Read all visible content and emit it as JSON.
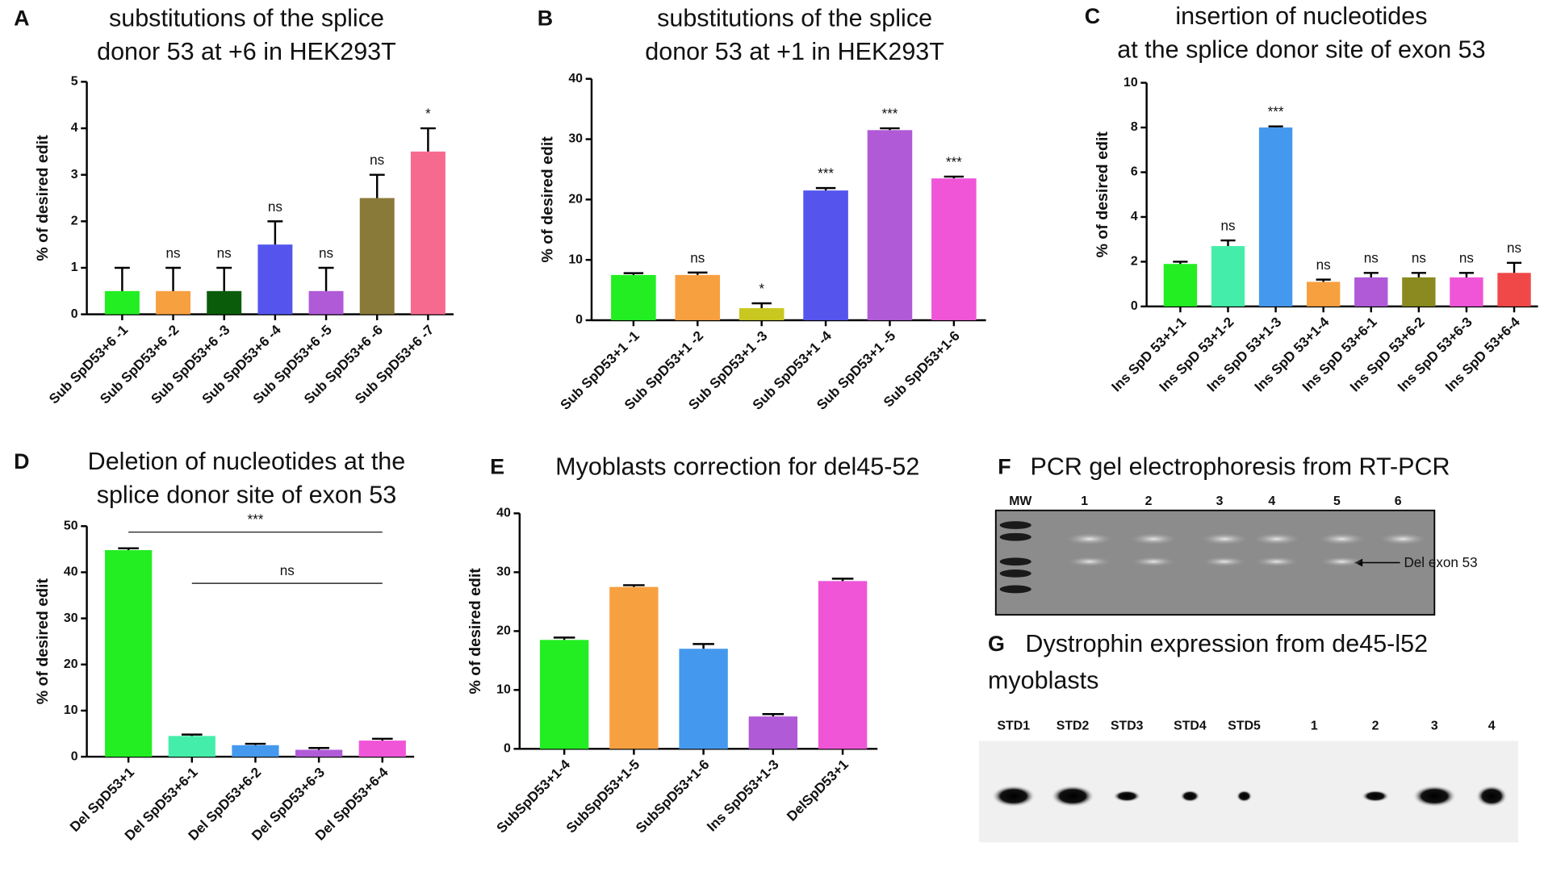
{
  "chart_data": [
    {
      "panel": "A",
      "type": "bar",
      "title": [
        "substitutions of the splice",
        "donor 53 at +6 in HEK293T"
      ],
      "ylabel": "% of desired edit",
      "categories": [
        "Sub SpD53+6 -1",
        "Sub SpD53+6 -2",
        "Sub SpD53+6 -3",
        "Sub SpD53+6 -4",
        "Sub SpD53+6 -5",
        "Sub SpD53+6 -6",
        "Sub SpD53+6 -7"
      ],
      "values": [
        0.5,
        0.5,
        0.5,
        1.5,
        0.5,
        2.5,
        3.5
      ],
      "errors": [
        0.5,
        0.5,
        0.5,
        0.5,
        0.5,
        0.5,
        0.5
      ],
      "colors": [
        "#22ee22",
        "#f7a040",
        "#0a5c0a",
        "#5555ee",
        "#b05ad8",
        "#8a7a3a",
        "#f76a90"
      ],
      "significance": [
        null,
        "ns",
        "ns",
        "ns",
        "ns",
        "ns",
        "*"
      ],
      "ylim": [
        0,
        5
      ],
      "yticks": [
        0,
        1,
        2,
        3,
        4,
        5
      ]
    },
    {
      "panel": "B",
      "type": "bar",
      "title": [
        "substitutions of the splice",
        "donor 53 at +1 in HEK293T"
      ],
      "ylabel": "% of desired edit",
      "categories": [
        "Sub SpD53+1 -1",
        "Sub SpD53+1 -2",
        "Sub SpD53+1 -3",
        "Sub SpD53+1 -4",
        "Sub SpD53+1 -5",
        "Sub SpD53+1-6"
      ],
      "values": [
        7.5,
        7.5,
        2,
        21.5,
        31.5,
        23.5
      ],
      "errors": [
        0.3,
        0.4,
        0.8,
        0.4,
        0.3,
        0.3
      ],
      "colors": [
        "#22ee22",
        "#f7a040",
        "#c8c820",
        "#5555ee",
        "#b05ad8",
        "#f055d8"
      ],
      "significance": [
        null,
        "ns",
        "*",
        "***",
        "***",
        "***"
      ],
      "ylim": [
        0,
        40
      ],
      "yticks": [
        0,
        10,
        20,
        30,
        40
      ]
    },
    {
      "panel": "C",
      "type": "bar",
      "title": [
        "insertion of nucleotides",
        "at the splice donor site of exon 53"
      ],
      "ylabel": "% of desired edit",
      "categories": [
        "Ins SpD 53+1-1",
        "Ins SpD 53+1-2",
        "Ins SpD 53+1-3",
        "Ins SpD 53+1-4",
        "Ins SpD 53+6-1",
        "Ins SpD 53+6-2",
        "Ins SpD 53+6-3",
        "Ins SpD 53+6-4"
      ],
      "values": [
        1.9,
        2.7,
        8,
        1.1,
        1.3,
        1.3,
        1.3,
        1.5
      ],
      "errors": [
        0.1,
        0.25,
        0.05,
        0.1,
        0.2,
        0.2,
        0.2,
        0.45
      ],
      "colors": [
        "#22ee22",
        "#44eeaa",
        "#4499ee",
        "#f7a040",
        "#b05ad8",
        "#8a8a20",
        "#f055d8",
        "#f04848"
      ],
      "significance": [
        null,
        "ns",
        "***",
        "ns",
        "ns",
        "ns",
        "ns",
        "ns"
      ],
      "ylim": [
        0,
        10
      ],
      "yticks": [
        0,
        2,
        4,
        6,
        8,
        10
      ]
    },
    {
      "panel": "D",
      "type": "bar",
      "title": [
        "Deletion of nucleotides at the",
        "splice donor site of exon 53"
      ],
      "ylabel": "% of desired edit",
      "categories": [
        "Del SpD53+1",
        "Del SpD53+6-1",
        "Del SpD53+6-2",
        "Del SpD53+6-3",
        "Del SpD53+6-4"
      ],
      "values": [
        44.8,
        4.5,
        2.5,
        1.5,
        3.5
      ],
      "errors": [
        0.4,
        0.3,
        0.3,
        0.4,
        0.4
      ],
      "colors": [
        "#22ee22",
        "#44eeaa",
        "#4499ee",
        "#b05ad8",
        "#f055d8"
      ],
      "brackets": [
        {
          "label": "***",
          "from": "Del SpD53+1",
          "to": "Del SpD53+6-4",
          "value": 48.7
        },
        {
          "label": "ns",
          "from": "Del SpD53+6-1",
          "to": "Del SpD53+6-4",
          "value": 37.6
        }
      ],
      "ylim": [
        0,
        50
      ],
      "yticks": [
        0,
        10,
        20,
        30,
        40,
        50
      ]
    },
    {
      "panel": "E",
      "type": "bar",
      "title": [
        "Myoblasts correction for del45-52"
      ],
      "ylabel": "% of desired edit",
      "categories": [
        "SubSpD53+1-4",
        "SubSpD53+1-5",
        "SubSpD53+1-6",
        "Ins SpD53+1-3",
        "DelSpD53+1"
      ],
      "values": [
        18.5,
        27.5,
        17,
        5.5,
        28.5
      ],
      "errors": [
        0.4,
        0.3,
        0.8,
        0.4,
        0.4
      ],
      "colors": [
        "#22ee22",
        "#f7a040",
        "#4499ee",
        "#b05ad8",
        "#f055d8"
      ],
      "ylim": [
        0,
        40
      ],
      "yticks": [
        0,
        10,
        20,
        30,
        40
      ]
    }
  ],
  "figures": [
    {
      "panel": "F",
      "title": [
        "PCR gel electrophoresis from RT-PCR"
      ],
      "lanes": [
        "MW",
        "1",
        "2",
        "3",
        "4",
        "5",
        "6"
      ],
      "annotation": "Del exon 53"
    },
    {
      "panel": "G",
      "title": [
        "Dystrophin expression from de45-l52",
        "myoblasts"
      ],
      "lanes": [
        "STD1",
        "STD2",
        "STD3",
        "STD4",
        "STD5",
        "1",
        "2",
        "3",
        "4"
      ]
    }
  ]
}
